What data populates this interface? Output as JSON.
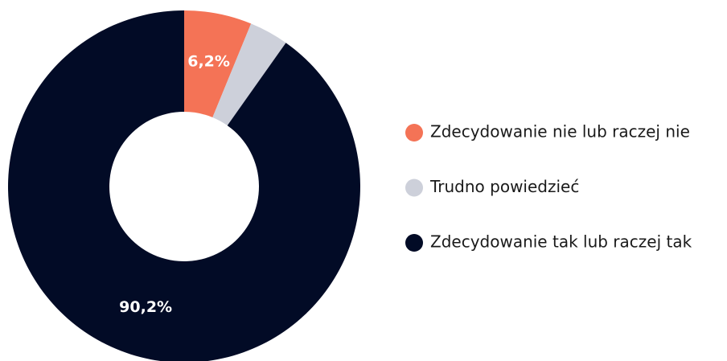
{
  "chart_data": {
    "type": "donut",
    "categories": [
      "Zdecydowanie nie lub raczej nie",
      "Trudno powiedzieć",
      "Zdecydowanie tak lub raczej tak"
    ],
    "values": [
      6.2,
      3.6,
      90.2
    ],
    "value_labels": [
      "6,2%",
      null,
      "90,2%"
    ],
    "colors": [
      "#f47356",
      "#cdd0da",
      "#020b26"
    ],
    "legend": "right"
  }
}
